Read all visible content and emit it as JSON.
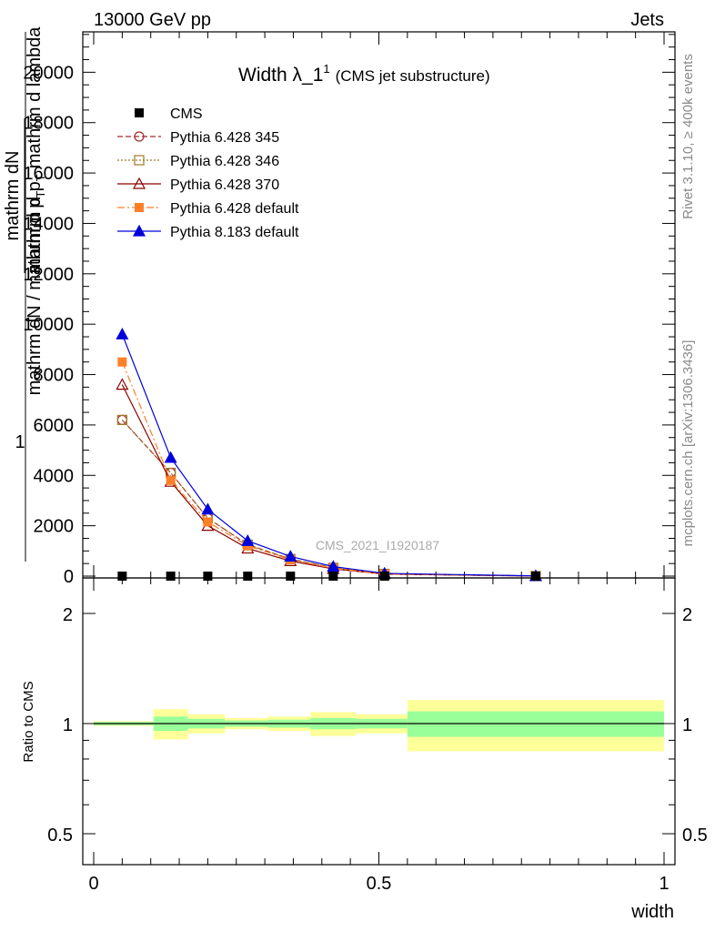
{
  "header": {
    "left": "13000 GeV pp",
    "right": "Jets"
  },
  "side_labels": {
    "rivet": "Rivet 3.1.10, ≥ 400k events",
    "mcplots": "mcplots.cern.ch [arXiv:1306.3436]"
  },
  "watermark": "CMS_2021_I1920187",
  "chart_data": [
    {
      "type": "line",
      "title": "Width λ_1",
      "title_sup": "1",
      "subtitle": "(CMS jet substructure)",
      "ylabel_lines": [
        "1",
        "mathrm dN / mathrm d p",
        "mathrm dN",
        "mathrm d p",
        "mathrm d lambda"
      ],
      "ylabel_sub": "T",
      "ylim": [
        0,
        22000
      ],
      "yticks": [
        0,
        2000,
        4000,
        6000,
        8000,
        10000,
        12000,
        14000,
        16000,
        18000,
        20000
      ],
      "ytick_labels": [
        "0",
        "2000",
        "4000",
        "6000",
        "8000",
        "10000",
        "12000",
        "14000",
        "16000",
        "18000",
        "20000"
      ],
      "xlim": [
        0,
        1
      ],
      "legend_position": "top-left",
      "series": [
        {
          "name": "CMS",
          "color": "#000000",
          "marker": "square-filled",
          "dash": "none",
          "x": [
            0.05,
            0.135,
            0.2,
            0.27,
            0.345,
            0.42,
            0.51,
            0.775
          ],
          "y": [
            0,
            0,
            0,
            0,
            0,
            0,
            0,
            0
          ]
        },
        {
          "name": "Pythia 6.428 345",
          "color": "#a52a2a",
          "marker": "circle-open",
          "dash": "6,3",
          "x": [
            0.05,
            0.135,
            0.2,
            0.27,
            0.345,
            0.42,
            0.51,
            0.775
          ],
          "y": [
            6200,
            4100,
            2300,
            1250,
            680,
            330,
            90,
            5
          ]
        },
        {
          "name": "Pythia 6.428 346",
          "color": "#a0782a",
          "marker": "square-open",
          "dash": "2,2",
          "x": [
            0.05,
            0.135,
            0.2,
            0.27,
            0.345,
            0.42,
            0.51,
            0.775
          ],
          "y": [
            6200,
            4100,
            2300,
            1250,
            680,
            330,
            90,
            5
          ]
        },
        {
          "name": "Pythia 6.428 370",
          "color": "#8b0000",
          "marker": "triangle-open",
          "dash": "none",
          "x": [
            0.05,
            0.135,
            0.2,
            0.27,
            0.345,
            0.42,
            0.51,
            0.775
          ],
          "y": [
            7600,
            3750,
            2000,
            1100,
            600,
            290,
            80,
            5
          ]
        },
        {
          "name": "Pythia 6.428 default",
          "color": "#ff7f27",
          "marker": "square-filled",
          "dash": "8,3,2,3",
          "x": [
            0.05,
            0.135,
            0.2,
            0.27,
            0.345,
            0.42,
            0.51,
            0.775
          ],
          "y": [
            8500,
            3800,
            2150,
            1200,
            650,
            310,
            85,
            5
          ]
        },
        {
          "name": "Pythia 8.183 default",
          "color": "#0000dd",
          "marker": "triangle-filled",
          "dash": "none",
          "x": [
            0.05,
            0.135,
            0.2,
            0.27,
            0.345,
            0.42,
            0.51,
            0.775
          ],
          "y": [
            9600,
            4700,
            2650,
            1400,
            780,
            380,
            110,
            8
          ]
        }
      ]
    },
    {
      "type": "area",
      "ylabel": "Ratio to CMS",
      "xlabel": "width",
      "ylim": [
        0.4,
        2.4
      ],
      "log_y": true,
      "yticks_left": [
        0.5,
        1,
        2
      ],
      "ytick_labels": [
        "0.5",
        "1",
        "2"
      ],
      "xlim": [
        0,
        1
      ],
      "xticks": [
        0,
        0.5,
        1
      ],
      "xtick_labels": [
        "0",
        "0.5",
        "1"
      ],
      "band_colors": {
        "stat": "#99ff99",
        "total": "#ffff99"
      },
      "bins": [
        {
          "lo": 0.0,
          "hi": 0.105,
          "stat": [
            0.99,
            1.01
          ],
          "total": [
            0.985,
            1.015
          ]
        },
        {
          "lo": 0.105,
          "hi": 0.165,
          "stat": [
            0.955,
            1.045
          ],
          "total": [
            0.905,
            1.095
          ]
        },
        {
          "lo": 0.165,
          "hi": 0.23,
          "stat": [
            0.97,
            1.03
          ],
          "total": [
            0.94,
            1.06
          ]
        },
        {
          "lo": 0.23,
          "hi": 0.305,
          "stat": [
            0.98,
            1.02
          ],
          "total": [
            0.965,
            1.035
          ]
        },
        {
          "lo": 0.305,
          "hi": 0.38,
          "stat": [
            0.975,
            1.025
          ],
          "total": [
            0.955,
            1.045
          ]
        },
        {
          "lo": 0.38,
          "hi": 0.46,
          "stat": [
            0.965,
            1.035
          ],
          "total": [
            0.925,
            1.075
          ]
        },
        {
          "lo": 0.46,
          "hi": 0.55,
          "stat": [
            0.97,
            1.03
          ],
          "total": [
            0.94,
            1.06
          ]
        },
        {
          "lo": 0.55,
          "hi": 1.0,
          "stat": [
            0.92,
            1.08
          ],
          "total": [
            0.84,
            1.16
          ]
        }
      ]
    }
  ]
}
